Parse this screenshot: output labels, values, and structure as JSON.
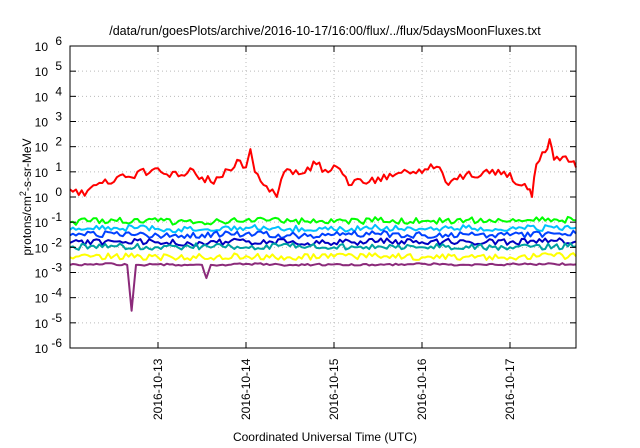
{
  "chart_data": {
    "type": "line",
    "title": "/data/run/goesPlots/archive/2016-10-17/16:00/flux/../flux/5daysMoonFluxes.txt",
    "xlabel": "Coordinated Universal Time (UTC)",
    "ylabel": {
      "main": "protons/cm",
      "sup": "2",
      "rest": "-s-sr-MeV"
    },
    "y_scale": "log",
    "ylim_exp": [
      -6,
      6
    ],
    "y_ticks": [
      {
        "base": "10",
        "exp": "-6"
      },
      {
        "base": "10",
        "exp": "-5"
      },
      {
        "base": "10",
        "exp": "-4"
      },
      {
        "base": "10",
        "exp": "-3"
      },
      {
        "base": "10",
        "exp": "-2"
      },
      {
        "base": "10",
        "exp": "-1"
      },
      {
        "base": "10",
        "exp": "0"
      },
      {
        "base": "10",
        "exp": "1"
      },
      {
        "base": "10",
        "exp": "2"
      },
      {
        "base": "10",
        "exp": "3"
      },
      {
        "base": "10",
        "exp": "4"
      },
      {
        "base": "10",
        "exp": "5"
      },
      {
        "base": "10",
        "exp": "6"
      }
    ],
    "xlim_days": [
      12.0,
      17.75
    ],
    "x_ticks": [
      {
        "label": "2016-10-13",
        "day": 13
      },
      {
        "label": "2016-10-14",
        "day": 14
      },
      {
        "label": "2016-10-15",
        "day": 15
      },
      {
        "label": "2016-10-16",
        "day": 16
      },
      {
        "label": "2016-10-17",
        "day": 17
      }
    ],
    "grid": true,
    "series": [
      {
        "color": "#ff0000",
        "points": [
          [
            12.0,
            2
          ],
          [
            12.1,
            1.2
          ],
          [
            12.2,
            1.8
          ],
          [
            12.3,
            3
          ],
          [
            12.4,
            5
          ],
          [
            12.5,
            4
          ],
          [
            12.6,
            8
          ],
          [
            12.7,
            6
          ],
          [
            12.8,
            12
          ],
          [
            12.9,
            9
          ],
          [
            13.0,
            14
          ],
          [
            13.1,
            8
          ],
          [
            13.2,
            10
          ],
          [
            13.3,
            7
          ],
          [
            13.4,
            12
          ],
          [
            13.5,
            6
          ],
          [
            13.6,
            4
          ],
          [
            13.7,
            6
          ],
          [
            13.8,
            12
          ],
          [
            13.9,
            30
          ],
          [
            14.0,
            15
          ],
          [
            14.05,
            80
          ],
          [
            14.1,
            10
          ],
          [
            14.2,
            3
          ],
          [
            14.3,
            2
          ],
          [
            14.35,
            1
          ],
          [
            14.4,
            5
          ],
          [
            14.5,
            12
          ],
          [
            14.6,
            8
          ],
          [
            14.7,
            15
          ],
          [
            14.8,
            20
          ],
          [
            14.9,
            12
          ],
          [
            15.0,
            18
          ],
          [
            15.1,
            8
          ],
          [
            15.2,
            3
          ],
          [
            15.3,
            5
          ],
          [
            15.4,
            4
          ],
          [
            15.5,
            6
          ],
          [
            15.6,
            5
          ],
          [
            15.7,
            8
          ],
          [
            15.8,
            12
          ],
          [
            15.9,
            10
          ],
          [
            16.0,
            9
          ],
          [
            16.1,
            20
          ],
          [
            16.2,
            15
          ],
          [
            16.3,
            3
          ],
          [
            16.4,
            5
          ],
          [
            16.5,
            8
          ],
          [
            16.6,
            6
          ],
          [
            16.7,
            10
          ],
          [
            16.8,
            12
          ],
          [
            16.9,
            8
          ],
          [
            17.0,
            9
          ],
          [
            17.1,
            3
          ],
          [
            17.2,
            2
          ],
          [
            17.25,
            1
          ],
          [
            17.3,
            20
          ],
          [
            17.4,
            60
          ],
          [
            17.45,
            200
          ],
          [
            17.5,
            30
          ],
          [
            17.6,
            40
          ],
          [
            17.7,
            25
          ],
          [
            17.75,
            15
          ]
        ]
      },
      {
        "color": "#00ff00",
        "points": [
          [
            12.0,
            0.1
          ],
          [
            12.5,
            0.12
          ],
          [
            13.0,
            0.11
          ],
          [
            13.5,
            0.1
          ],
          [
            14.0,
            0.12
          ],
          [
            14.5,
            0.11
          ],
          [
            15.0,
            0.1
          ],
          [
            15.5,
            0.12
          ],
          [
            16.0,
            0.11
          ],
          [
            16.5,
            0.12
          ],
          [
            17.0,
            0.11
          ],
          [
            17.5,
            0.13
          ],
          [
            17.75,
            0.12
          ]
        ]
      },
      {
        "color": "#00c0ff",
        "points": [
          [
            12.0,
            0.05
          ],
          [
            12.5,
            0.06
          ],
          [
            13.0,
            0.055
          ],
          [
            13.5,
            0.05
          ],
          [
            14.0,
            0.06
          ],
          [
            14.5,
            0.055
          ],
          [
            15.0,
            0.05
          ],
          [
            15.5,
            0.06
          ],
          [
            16.0,
            0.055
          ],
          [
            16.5,
            0.06
          ],
          [
            17.0,
            0.055
          ],
          [
            17.5,
            0.06
          ],
          [
            17.75,
            0.06
          ]
        ]
      },
      {
        "color": "#0040ff",
        "points": [
          [
            12.0,
            0.03
          ],
          [
            12.5,
            0.035
          ],
          [
            13.0,
            0.03
          ],
          [
            13.5,
            0.032
          ],
          [
            14.0,
            0.035
          ],
          [
            14.5,
            0.03
          ],
          [
            15.0,
            0.032
          ],
          [
            15.5,
            0.035
          ],
          [
            16.0,
            0.03
          ],
          [
            16.5,
            0.033
          ],
          [
            17.0,
            0.03
          ],
          [
            17.5,
            0.035
          ],
          [
            17.75,
            0.035
          ]
        ]
      },
      {
        "color": "#0000c0",
        "points": [
          [
            12.0,
            0.015
          ],
          [
            12.5,
            0.017
          ],
          [
            13.0,
            0.016
          ],
          [
            13.5,
            0.015
          ],
          [
            14.0,
            0.017
          ],
          [
            14.5,
            0.016
          ],
          [
            15.0,
            0.015
          ],
          [
            15.5,
            0.017
          ],
          [
            16.0,
            0.016
          ],
          [
            16.5,
            0.017
          ],
          [
            17.0,
            0.016
          ],
          [
            17.5,
            0.018
          ],
          [
            17.75,
            0.017
          ]
        ]
      },
      {
        "color": "#00a0a0",
        "points": [
          [
            12.0,
            0.01
          ],
          [
            12.5,
            0.011
          ],
          [
            13.0,
            0.01
          ],
          [
            13.5,
            0.011
          ],
          [
            14.0,
            0.01
          ],
          [
            14.5,
            0.011
          ],
          [
            15.0,
            0.01
          ],
          [
            15.5,
            0.011
          ],
          [
            16.0,
            0.01
          ],
          [
            16.5,
            0.011
          ],
          [
            17.0,
            0.01
          ],
          [
            17.5,
            0.011
          ],
          [
            17.75,
            0.011
          ]
        ]
      },
      {
        "color": "#ffff00",
        "points": [
          [
            12.0,
            0.004
          ],
          [
            12.5,
            0.0045
          ],
          [
            13.0,
            0.004
          ],
          [
            13.5,
            0.0042
          ],
          [
            14.0,
            0.0045
          ],
          [
            14.5,
            0.004
          ],
          [
            15.0,
            0.0042
          ],
          [
            15.5,
            0.0045
          ],
          [
            16.0,
            0.004
          ],
          [
            16.5,
            0.0043
          ],
          [
            17.0,
            0.004
          ],
          [
            17.5,
            0.0045
          ],
          [
            17.75,
            0.0044
          ]
        ]
      },
      {
        "color": "#8b2a7a",
        "points": [
          [
            12.0,
            0.002
          ],
          [
            12.5,
            0.0022
          ],
          [
            12.65,
            0.002
          ],
          [
            12.7,
            3e-05
          ],
          [
            12.75,
            0.002
          ],
          [
            13.0,
            0.0021
          ],
          [
            13.5,
            0.002
          ],
          [
            13.55,
            0.0006
          ],
          [
            13.6,
            0.002
          ],
          [
            14.0,
            0.0022
          ],
          [
            14.5,
            0.002
          ],
          [
            15.0,
            0.0021
          ],
          [
            15.5,
            0.002
          ],
          [
            16.0,
            0.0022
          ],
          [
            16.5,
            0.002
          ],
          [
            17.0,
            0.0021
          ],
          [
            17.5,
            0.0022
          ],
          [
            17.75,
            0.0021
          ]
        ]
      }
    ]
  }
}
